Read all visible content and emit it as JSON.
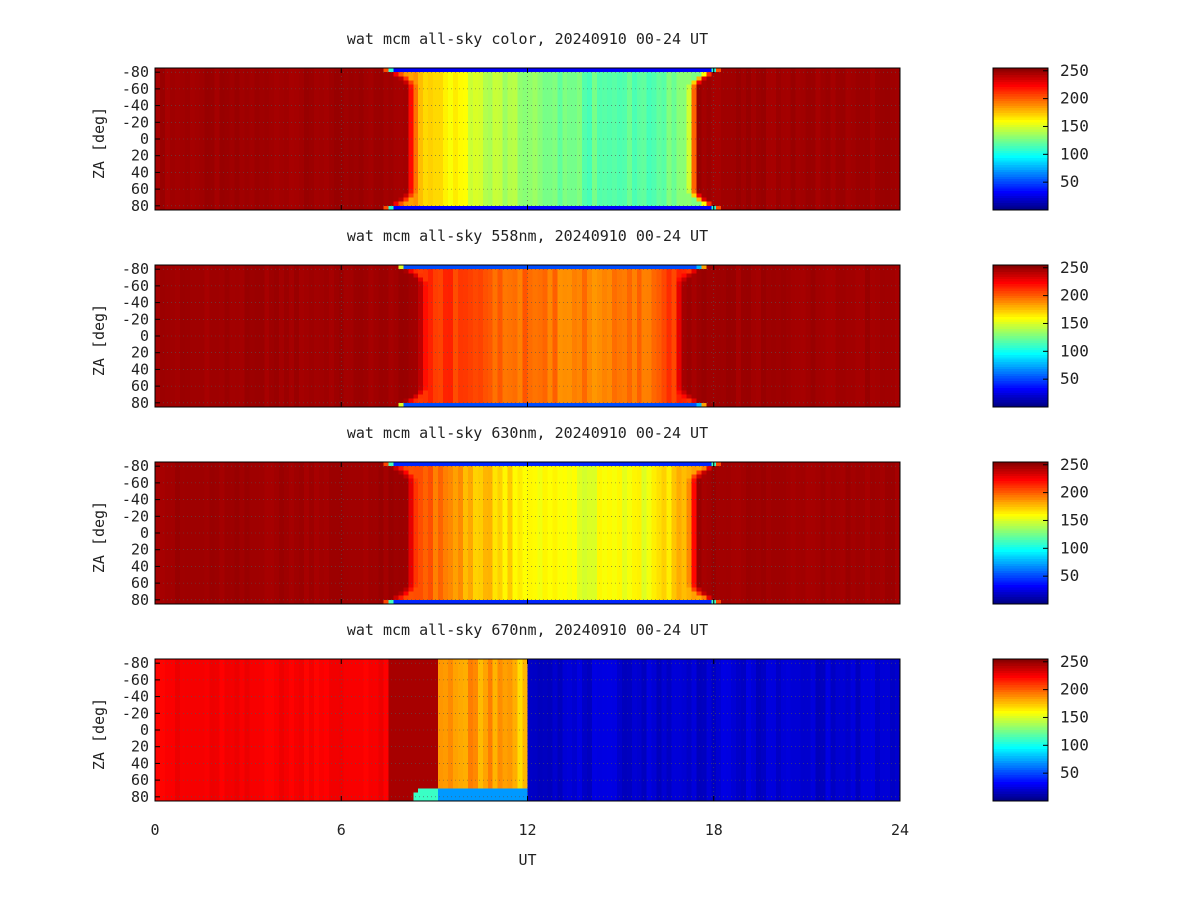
{
  "chart_data": [
    {
      "type": "heatmap",
      "title": "wat mcm all-sky color, 20240910 00-24 UT",
      "ylabel": "ZA [deg]",
      "xlabel": "",
      "xlim": [
        0,
        24
      ],
      "ylim": [
        -85,
        85
      ],
      "yticks": [
        "-80",
        "-60",
        "-40",
        "-20",
        "0",
        "20",
        "40",
        "60",
        "80"
      ],
      "colorbar": {
        "range": [
          0,
          255
        ],
        "ticks": [
          "250",
          "200",
          "150",
          "100",
          "50"
        ]
      },
      "grid": true,
      "profile": {
        "night_value": 247,
        "day_start": 8.45,
        "day_end": 17.15,
        "ramp_hours": 0.35,
        "core_values_by_hour": [
          [
            8.45,
            180
          ],
          [
            9.5,
            160
          ],
          [
            11,
            140
          ],
          [
            12.5,
            128
          ],
          [
            14,
            120
          ],
          [
            15.5,
            118
          ],
          [
            17.15,
            125
          ]
        ],
        "horizon_value": 30,
        "horizon_za": 82
      }
    },
    {
      "type": "heatmap",
      "title": "wat mcm all-sky 558nm, 20240910 00-24 UT",
      "ylabel": "ZA [deg]",
      "xlabel": "",
      "xlim": [
        0,
        24
      ],
      "ylim": [
        -85,
        85
      ],
      "yticks": [
        "-80",
        "-60",
        "-40",
        "-20",
        "0",
        "20",
        "40",
        "60",
        "80"
      ],
      "colorbar": {
        "range": [
          0,
          255
        ],
        "ticks": [
          "250",
          "200",
          "150",
          "100",
          "50"
        ]
      },
      "grid": true,
      "profile": {
        "night_value": 247,
        "day_start": 8.8,
        "day_end": 16.75,
        "ramp_hours": 0.3,
        "core_values_by_hour": [
          [
            8.8,
            215
          ],
          [
            10,
            205
          ],
          [
            12,
            195
          ],
          [
            14,
            190
          ],
          [
            16,
            195
          ],
          [
            16.75,
            210
          ]
        ],
        "horizon_value": 50,
        "horizon_za": 82
      }
    },
    {
      "type": "heatmap",
      "title": "wat mcm all-sky 630nm, 20240910 00-24 UT",
      "ylabel": "ZA [deg]",
      "xlabel": "",
      "xlim": [
        0,
        24
      ],
      "ylim": [
        -85,
        85
      ],
      "yticks": [
        "-80",
        "-60",
        "-40",
        "-20",
        "0",
        "20",
        "40",
        "60",
        "80"
      ],
      "colorbar": {
        "range": [
          0,
          255
        ],
        "ticks": [
          "250",
          "200",
          "150",
          "100",
          "50"
        ]
      },
      "grid": true,
      "profile": {
        "night_value": 247,
        "day_start": 8.45,
        "day_end": 17.15,
        "ramp_hours": 0.35,
        "core_values_by_hour": [
          [
            8.45,
            205
          ],
          [
            10,
            180
          ],
          [
            12,
            160
          ],
          [
            14,
            155
          ],
          [
            16,
            158
          ],
          [
            17.15,
            180
          ]
        ],
        "horizon_value": 40,
        "horizon_za": 82
      }
    },
    {
      "type": "heatmap",
      "title": "wat mcm all-sky 670nm, 20240910 00-24 UT",
      "ylabel": "ZA [deg]",
      "xlabel": "UT",
      "xlim": [
        0,
        24
      ],
      "xticks": [
        "0",
        "6",
        "12",
        "18",
        "24"
      ],
      "ylim": [
        -85,
        85
      ],
      "yticks": [
        "-80",
        "-60",
        "-40",
        "-20",
        "0",
        "20",
        "40",
        "60",
        "80"
      ],
      "colorbar": {
        "range": [
          0,
          255
        ],
        "ticks": [
          "250",
          "200",
          "150",
          "100",
          "50"
        ]
      },
      "grid": true,
      "profile": {
        "night_value": 225,
        "dark_band": [
          7.5,
          9.2
        ],
        "dark_band_value": 245,
        "bright_start": 9.2,
        "bright_end": 12.0,
        "bright_values_by_hour": [
          [
            9.2,
            190
          ],
          [
            10.5,
            185
          ],
          [
            12.0,
            175
          ]
        ],
        "after_value": 20,
        "horizon_value": 70,
        "horizon_za": 72
      }
    }
  ]
}
